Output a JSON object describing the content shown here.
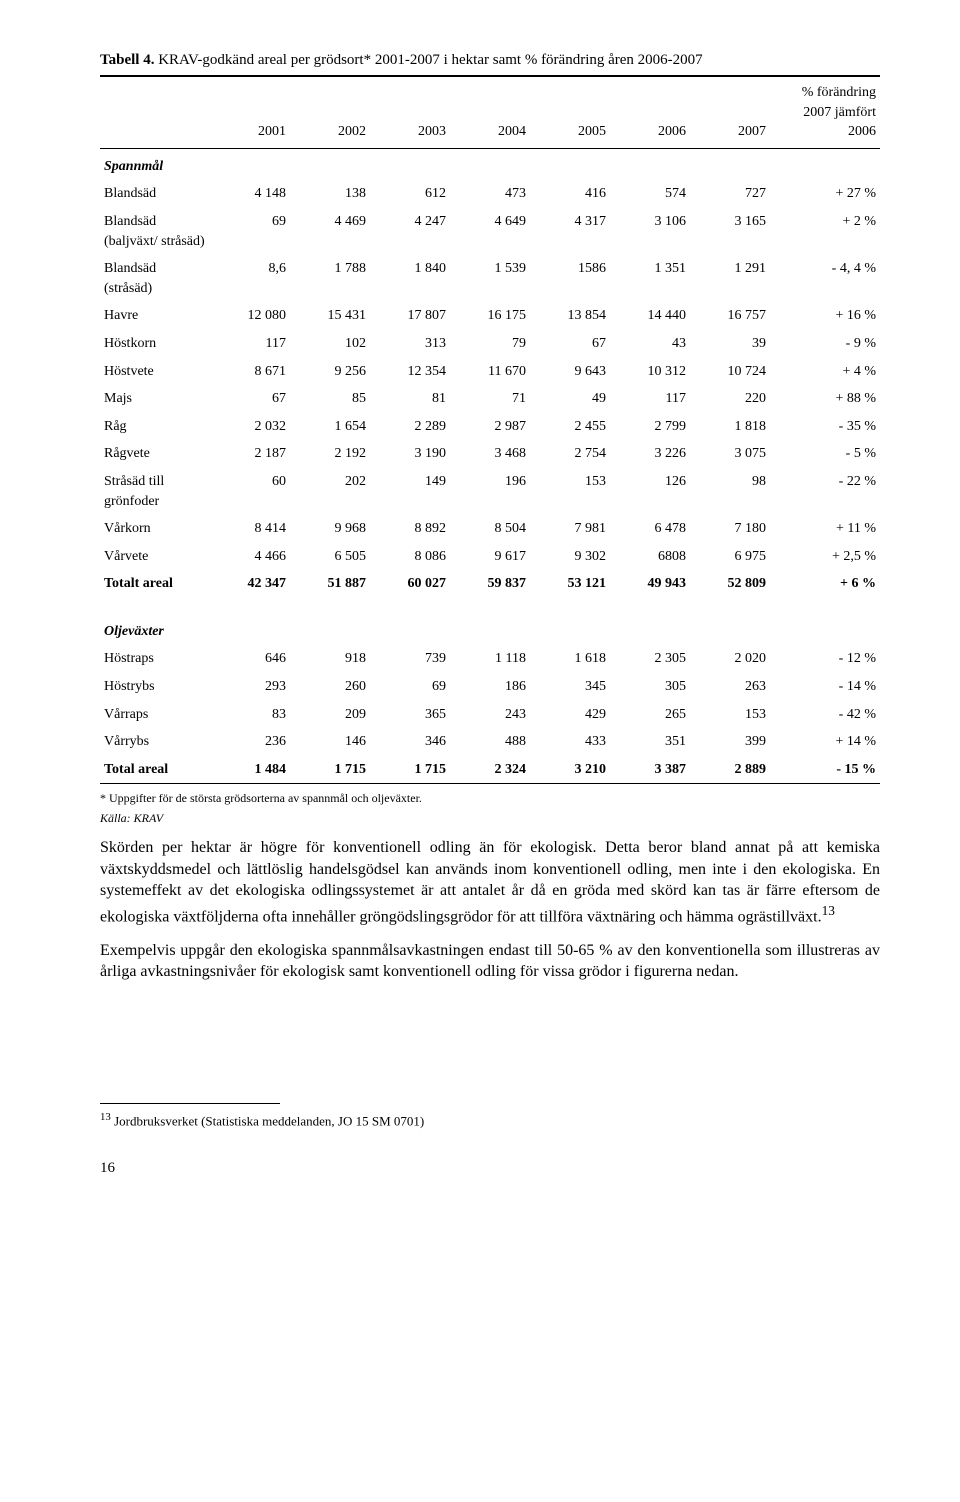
{
  "tableCaption": {
    "label": "Tabell 4.",
    "text": "KRAV-godkänd areal per grödsort* 2001-2007 i hektar samt % förändring åren 2006-2007"
  },
  "headers": {
    "y2001": "2001",
    "y2002": "2002",
    "y2003": "2003",
    "y2004": "2004",
    "y2005": "2005",
    "y2006": "2006",
    "y2007": "2007",
    "change": "% förändring 2007 jämfört 2006"
  },
  "section1": "Spannmål",
  "rows1": [
    {
      "crop": "Blandsäd",
      "v": [
        "4 148",
        "138",
        "612",
        "473",
        "416",
        "574",
        "727",
        "+ 27 %"
      ]
    },
    {
      "crop": "Blandsäd (baljväxt/ stråsäd)",
      "v": [
        "69",
        "4 469",
        "4 247",
        "4 649",
        "4 317",
        "3 106",
        "3 165",
        "+ 2 %"
      ]
    },
    {
      "crop": "Blandsäd (stråsäd)",
      "v": [
        "8,6",
        "1 788",
        "1 840",
        "1 539",
        "1586",
        "1 351",
        "1 291",
        "- 4, 4 %"
      ]
    },
    {
      "crop": "Havre",
      "v": [
        "12 080",
        "15 431",
        "17 807",
        "16 175",
        "13 854",
        "14 440",
        "16 757",
        "+ 16 %"
      ]
    },
    {
      "crop": "Höstkorn",
      "v": [
        "117",
        "102",
        "313",
        "79",
        "67",
        "43",
        "39",
        "- 9 %"
      ]
    },
    {
      "crop": "Höstvete",
      "v": [
        "8 671",
        "9 256",
        "12 354",
        "11 670",
        "9 643",
        "10 312",
        "10 724",
        "+ 4 %"
      ]
    },
    {
      "crop": "Majs",
      "v": [
        "67",
        "85",
        "81",
        "71",
        "49",
        "117",
        "220",
        "+ 88 %"
      ]
    },
    {
      "crop": "Råg",
      "v": [
        "2 032",
        "1 654",
        "2 289",
        "2 987",
        "2 455",
        "2 799",
        "1 818",
        "- 35 %"
      ]
    },
    {
      "crop": "Rågvete",
      "v": [
        "2 187",
        "2 192",
        "3 190",
        "3 468",
        "2 754",
        "3 226",
        "3 075",
        "- 5 %"
      ]
    },
    {
      "crop": "Stråsäd till grönfoder",
      "v": [
        "60",
        "202",
        "149",
        "196",
        "153",
        "126",
        "98",
        "- 22 %"
      ]
    },
    {
      "crop": "Vårkorn",
      "v": [
        "8 414",
        "9 968",
        "8 892",
        "8 504",
        "7 981",
        "6 478",
        "7 180",
        "+ 11 %"
      ]
    },
    {
      "crop": "Vårvete",
      "v": [
        "4 466",
        "6 505",
        "8 086",
        "9 617",
        "9 302",
        "6808",
        "6 975",
        "+ 2,5 %"
      ]
    }
  ],
  "total1": {
    "crop": "Totalt areal",
    "v": [
      "42 347",
      "51 887",
      "60 027",
      "59 837",
      "53 121",
      "49 943",
      "52 809",
      "+ 6 %"
    ]
  },
  "section2": "Oljeväxter",
  "rows2": [
    {
      "crop": "Höstraps",
      "v": [
        "646",
        "918",
        "739",
        "1 118",
        "1 618",
        "2 305",
        "2 020",
        "- 12 %"
      ]
    },
    {
      "crop": "Höstrybs",
      "v": [
        "293",
        "260",
        "69",
        "186",
        "345",
        "305",
        "263",
        "- 14 %"
      ]
    },
    {
      "crop": "Vårraps",
      "v": [
        "83",
        "209",
        "365",
        "243",
        "429",
        "265",
        "153",
        "- 42 %"
      ]
    },
    {
      "crop": "Vårrybs",
      "v": [
        "236",
        "146",
        "346",
        "488",
        "433",
        "351",
        "399",
        "+ 14 %"
      ]
    }
  ],
  "total2": {
    "crop": "Total areal",
    "v": [
      "1 484",
      "1 715",
      "1 715",
      "2 324",
      "3 210",
      "3 387",
      "2 889",
      "- 15 %"
    ]
  },
  "tableFootnote": "* Uppgifter för de största grödsorterna av spannmål och oljeväxter.",
  "source": "Källa: KRAV",
  "paragraph1": "Skörden per hektar är högre för konventionell odling än för ekologisk. Detta beror bland annat på att kemiska växtskyddsmedel och lättlöslig handelsgödsel kan används inom konventionell odling, men inte i den ekologiska. En systemeffekt av det ekologiska odlingssystemet är att antalet år då en gröda med skörd kan tas är färre eftersom de ekologiska växtföljderna ofta innehåller gröngödslingsgrödor för att tillföra växtnäring och hämma ogrästillväxt.",
  "fnMarker1": "13",
  "paragraph2": "Exempelvis uppgår den ekologiska spannmålsavkastningen endast till 50-65 % av den konventionella som illustreras av årliga avkastningsnivåer för ekologisk samt konventionell odling för vissa grödor i figurerna nedan.",
  "endnote": {
    "num": "13",
    "text": " Jordbruksverket (Statistiska meddelanden, JO 15 SM 0701)"
  },
  "pageNumber": "16"
}
